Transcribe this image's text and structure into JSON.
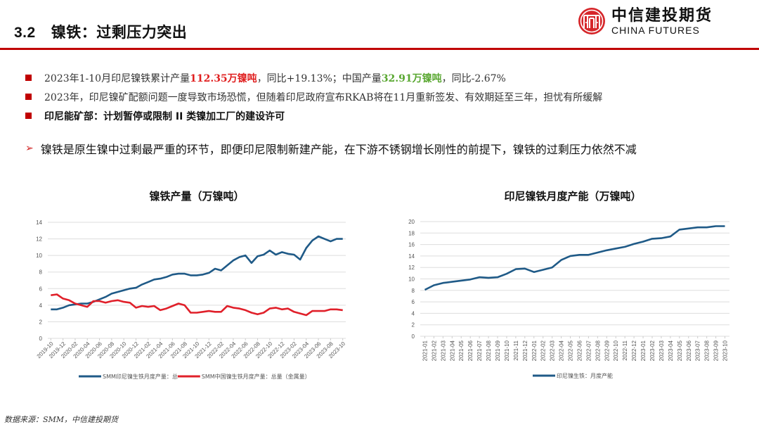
{
  "header": {
    "section_number": "3.2",
    "title": "镍铁：过剩压力突出",
    "logo_cn": "中信建投期货",
    "logo_en": "CHINA FUTURES",
    "rule_color": "#c00000"
  },
  "bullets": [
    {
      "pre": "2023年1-10月印尼镍铁累计产量",
      "hl1": "112.35万镍吨",
      "mid": "，同比+19.13%；中国产量",
      "hl2": "32.91万镍吨",
      "post": "，同比-2.67%"
    },
    {
      "text": "2023年，印尼镍矿配额问题一度导致市场恐慌，但随着印尼政府宣布RKAB将在11月重新签发、有效期延至三年，担忧有所缓解"
    },
    {
      "text": "印尼能矿部：计划暂停或限制 II 类镍加工厂的建设许可"
    }
  ],
  "conclusion": "镍铁是原生镍中过剩最严重的环节，即便印尼限制新建产能，在下游不锈钢增长刚性的前提下，镍铁的过剩压力依然不减",
  "source": "数据来源：SMM，中信建投期货",
  "chart_data": [
    {
      "type": "line",
      "title": "镍铁产量（万镍吨）",
      "xlabel": "",
      "ylabel": "",
      "ylim": [
        0,
        14
      ],
      "yticks": [
        0,
        2,
        4,
        6,
        8,
        10,
        12,
        14
      ],
      "grid": true,
      "legend_position": "bottom",
      "x_tick_labels": [
        "2019-10",
        "2019-12",
        "2020-02",
        "2020-04",
        "2020-06",
        "2020-08",
        "2020-10",
        "2020-12",
        "2021-02",
        "2021-04",
        "2021-06",
        "2021-08",
        "2021-10",
        "2021-12",
        "2022-02",
        "2022-04",
        "2022-06",
        "2022-08",
        "2022-10",
        "2022-12",
        "2023-02",
        "2023-04",
        "2023-06",
        "2023-08",
        "2023-10"
      ],
      "x_start": "2019-10",
      "x_end": "2023-10",
      "series": [
        {
          "name": "SMM印尼镍生铁月度产量：总",
          "color": "#1f5a87",
          "values": [
            3.5,
            3.5,
            3.7,
            4.0,
            4.1,
            4.2,
            4.2,
            4.4,
            4.7,
            5.0,
            5.4,
            5.6,
            5.8,
            6.0,
            6.1,
            6.5,
            6.8,
            7.1,
            7.2,
            7.4,
            7.7,
            7.8,
            7.8,
            7.6,
            7.6,
            7.7,
            7.9,
            8.4,
            8.2,
            8.8,
            9.4,
            9.8,
            10.0,
            9.1,
            9.9,
            10.1,
            10.6,
            10.1,
            10.4,
            10.2,
            10.1,
            9.5,
            10.9,
            11.8,
            12.3,
            12.0,
            11.7,
            12.0,
            12.0
          ]
        },
        {
          "name": "SMM中国镍生铁月度产量：总量（金属量）",
          "color": "#e0202a",
          "values": [
            5.2,
            5.3,
            4.8,
            4.6,
            4.2,
            4.0,
            3.8,
            4.5,
            4.5,
            4.3,
            4.5,
            4.6,
            4.4,
            4.3,
            3.7,
            3.9,
            3.8,
            3.9,
            3.4,
            3.6,
            3.9,
            4.2,
            4.0,
            3.1,
            3.1,
            3.2,
            3.3,
            3.2,
            3.2,
            3.9,
            3.7,
            3.6,
            3.4,
            3.1,
            2.9,
            3.1,
            3.6,
            3.7,
            3.5,
            3.6,
            3.2,
            3.0,
            2.8,
            3.3,
            3.3,
            3.3,
            3.5,
            3.5,
            3.4
          ]
        }
      ]
    },
    {
      "type": "line",
      "title": "印尼镍铁月度产能（万镍吨）",
      "xlabel": "",
      "ylabel": "",
      "ylim": [
        0,
        20
      ],
      "yticks": [
        0,
        2,
        4,
        6,
        8,
        10,
        12,
        14,
        16,
        18,
        20
      ],
      "grid": true,
      "legend_position": "bottom",
      "x_tick_labels": [
        "2021-01",
        "2021-02",
        "2021-03",
        "2021-04",
        "2021-05",
        "2021-06",
        "2021-07",
        "2021-08",
        "2021-09",
        "2021-10",
        "2021-11",
        "2021-12",
        "2022-01",
        "2022-02",
        "2022-03",
        "2022-04",
        "2022-05",
        "2022-06",
        "2022-07",
        "2022-08",
        "2022-09",
        "2022-10",
        "2022-11",
        "2022-12",
        "2023-01",
        "2023-02",
        "2023-03",
        "2023-04",
        "2023-05",
        "2023-06",
        "2023-07",
        "2023-08",
        "2023-09",
        "2023-10"
      ],
      "series": [
        {
          "name": "印尼镍生铁：月度产能",
          "color": "#1f5a87",
          "values": [
            8.1,
            8.9,
            9.3,
            9.5,
            9.7,
            9.9,
            10.3,
            10.2,
            10.3,
            10.9,
            11.7,
            11.8,
            11.2,
            11.6,
            12.0,
            13.3,
            14.0,
            14.2,
            14.2,
            14.6,
            15.0,
            15.3,
            15.6,
            16.1,
            16.5,
            17.0,
            17.1,
            17.4,
            18.6,
            18.8,
            19.0,
            19.0,
            19.2,
            19.2
          ]
        }
      ]
    }
  ]
}
